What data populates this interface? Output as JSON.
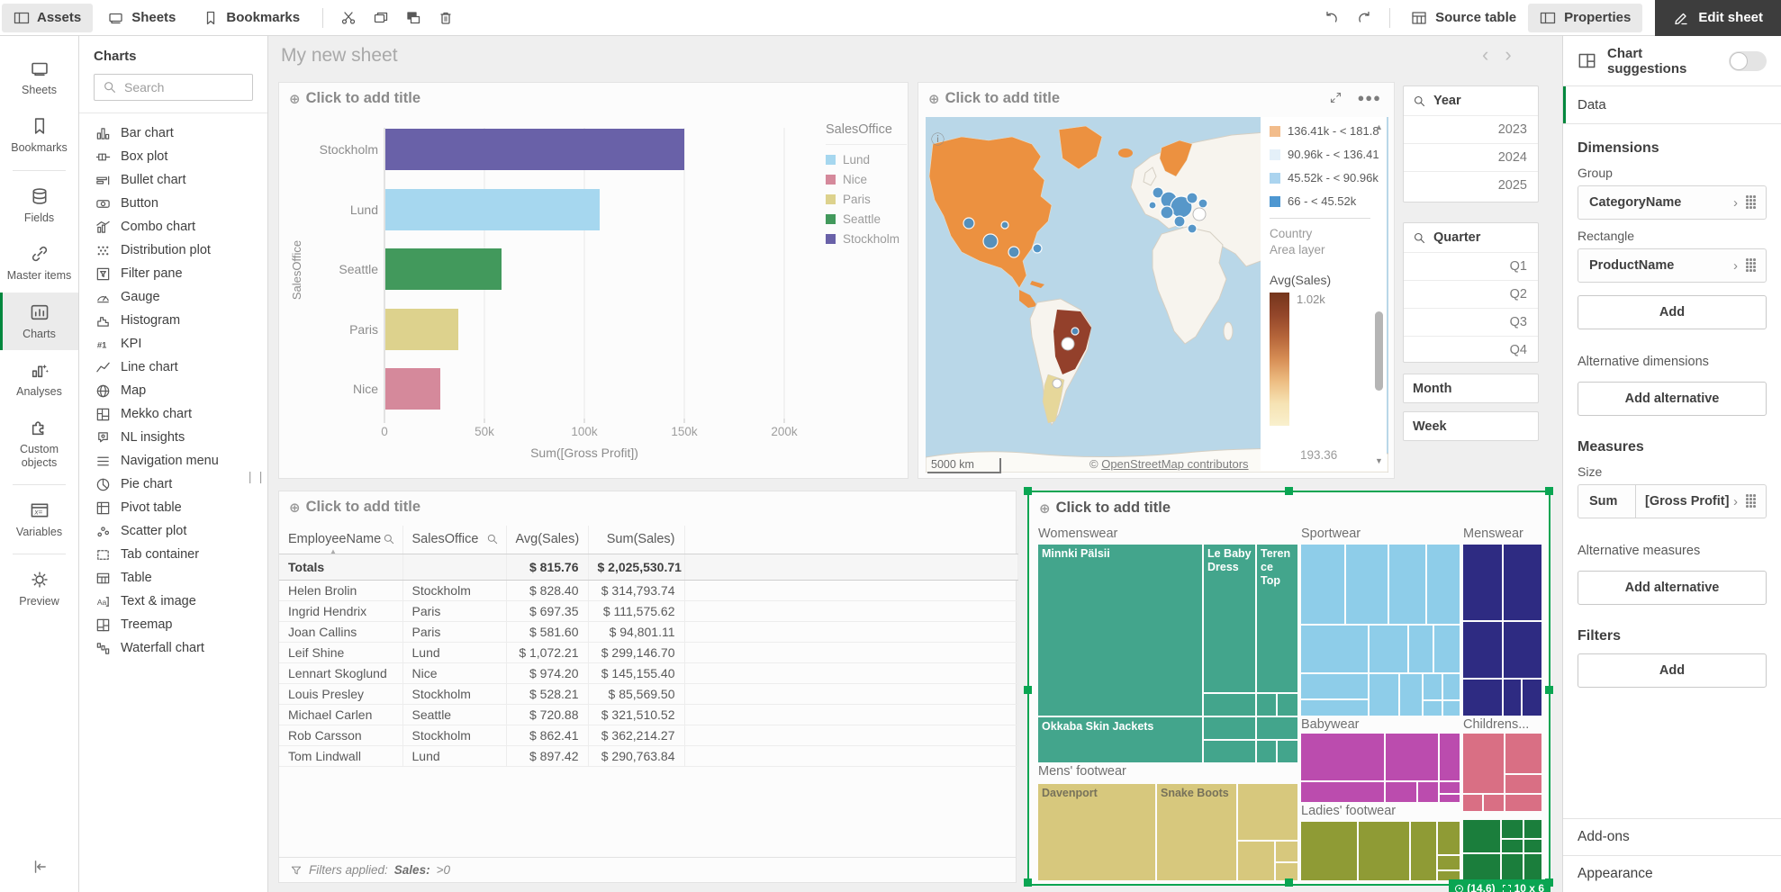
{
  "toolbar": {
    "tabs": [
      {
        "label": "Assets",
        "icon": "panel-left-icon",
        "active": true
      },
      {
        "label": "Sheets",
        "icon": "sheet-icon",
        "active": false
      },
      {
        "label": "Bookmarks",
        "icon": "bookmark-icon",
        "active": false
      }
    ],
    "clipboard": [
      {
        "name": "cut-button",
        "icon": "cut-icon"
      },
      {
        "name": "copy-button",
        "icon": "copy-icon"
      },
      {
        "name": "paste-button",
        "icon": "paste-icon"
      },
      {
        "name": "delete-button",
        "icon": "trash-icon"
      }
    ],
    "source_table_label": "Source table",
    "properties_label": "Properties",
    "edit_sheet_label": "Edit sheet"
  },
  "nav": {
    "items": [
      {
        "label": "Sheets",
        "icon": "sheets-icon",
        "active": false,
        "divider_after": false
      },
      {
        "label": "Bookmarks",
        "icon": "bookmark-icon",
        "active": false,
        "divider_after": true
      },
      {
        "label": "Fields",
        "icon": "database-icon",
        "active": false,
        "divider_after": false
      },
      {
        "label": "Master items",
        "icon": "link-icon",
        "active": false,
        "divider_after": false
      },
      {
        "label": "Charts",
        "icon": "charts-icon",
        "active": true,
        "divider_after": false
      },
      {
        "label": "Analyses",
        "icon": "analyses-icon",
        "active": false,
        "divider_after": false
      },
      {
        "label": "Custom objects",
        "icon": "puzzle-icon",
        "active": false,
        "divider_after": true
      },
      {
        "label": "Variables",
        "icon": "variables-icon",
        "active": false,
        "divider_after": true
      },
      {
        "label": "Preview",
        "icon": "preview-icon",
        "active": false,
        "divider_after": false
      }
    ]
  },
  "assets_panel": {
    "title": "Charts",
    "search_placeholder": "Search",
    "chart_types": [
      "Bar chart",
      "Box plot",
      "Bullet chart",
      "Button",
      "Combo chart",
      "Distribution plot",
      "Filter pane",
      "Gauge",
      "Histogram",
      "KPI",
      "Line chart",
      "Map",
      "Mekko chart",
      "NL insights",
      "Navigation menu",
      "Pie chart",
      "Pivot table",
      "Scatter plot",
      "Tab container",
      "Table",
      "Text & image",
      "Treemap",
      "Waterfall chart"
    ]
  },
  "sheet": {
    "title": "My new sheet"
  },
  "bar_chart": {
    "title_placeholder": "Click to add title",
    "y_axis_label": "SalesOffice",
    "x_axis_label": "Sum([Gross Profit])",
    "x_ticks": [
      "0",
      "50k",
      "100k",
      "150k",
      "200k"
    ],
    "categories": [
      "Stockholm",
      "Lund",
      "Seattle",
      "Paris",
      "Nice"
    ],
    "values": [
      149500,
      107000,
      58000,
      36500,
      27500
    ],
    "colors": [
      "#6961a8",
      "#a6d7ef",
      "#42995c",
      "#ddd28d",
      "#d5899b"
    ],
    "legend_title": "SalesOffice",
    "legend": [
      {
        "label": "Lund",
        "color": "#a6d7ef"
      },
      {
        "label": "Nice",
        "color": "#d5899b"
      },
      {
        "label": "Paris",
        "color": "#ddd28d"
      },
      {
        "label": "Seattle",
        "color": "#42995c"
      },
      {
        "label": "Stockholm",
        "color": "#6961a8"
      }
    ]
  },
  "map_chart": {
    "title_placeholder": "Click to add title",
    "classes": [
      {
        "label": "136.41k - < 181.8",
        "color": "#f2bc8b"
      },
      {
        "label": "90.96k - < 136.41",
        "color": "#e4f0f9"
      },
      {
        "label": "45.52k - < 90.96k",
        "color": "#abd4ef"
      },
      {
        "label": "66 - < 45.52k",
        "color": "#4e97d1"
      }
    ],
    "layer_name": "Country",
    "layer_type": "Area layer",
    "gradient_title": "Avg(Sales)",
    "gradient_max_label": "1.02k",
    "gradient_min_label": "193.36",
    "scale_label": "5000 km",
    "attribution_prefix": "©",
    "attribution_link": "OpenStreetMap contributors"
  },
  "filters": {
    "year": {
      "title": "Year",
      "values": [
        "2023",
        "2024",
        "2025"
      ]
    },
    "quarter": {
      "title": "Quarter",
      "values": [
        "Q1",
        "Q2",
        "Q3",
        "Q4"
      ]
    },
    "month": {
      "title": "Month"
    },
    "week": {
      "title": "Week"
    }
  },
  "table_chart": {
    "title_placeholder": "Click to add title",
    "headers": [
      "EmployeeName",
      "SalesOffice",
      "Avg(Sales)",
      "Sum(Sales)"
    ],
    "totals": {
      "label": "Totals",
      "avg": "$ 815.76",
      "sum": "$ 2,025,530.71"
    },
    "rows": [
      [
        "Helen Brolin",
        "Stockholm",
        "$ 828.40",
        "$ 314,793.74"
      ],
      [
        "Ingrid Hendrix",
        "Paris",
        "$ 697.35",
        "$ 111,575.62"
      ],
      [
        "Joan Callins",
        "Paris",
        "$ 581.60",
        "$ 94,801.11"
      ],
      [
        "Leif Shine",
        "Lund",
        "$ 1,072.21",
        "$ 299,146.70"
      ],
      [
        "Lennart Skoglund",
        "Nice",
        "$ 974.20",
        "$ 145,155.40"
      ],
      [
        "Louis Presley",
        "Stockholm",
        "$ 528.21",
        "$ 85,569.50"
      ],
      [
        "Michael Carlen",
        "Seattle",
        "$ 720.88",
        "$ 321,510.52"
      ],
      [
        "Rob Carsson",
        "Stockholm",
        "$ 862.41",
        "$ 362,214.27"
      ],
      [
        "Tom Lindwall",
        "Lund",
        "$ 897.42",
        "$ 290,763.84"
      ]
    ],
    "footer_prefix": "Filters applied:",
    "footer_filter": "Sales:",
    "footer_value": ">0"
  },
  "treemap_chart": {
    "title_placeholder": "Click to add title",
    "groups": [
      {
        "name": "Womenswear",
        "color": "#43a58c",
        "products": [
          "Minnki Pälsii",
          "Le Baby Dress",
          "Terence Top",
          "Okkaba Skin Jackets"
        ]
      },
      {
        "name": "Sportwear",
        "color": "#8ecde9",
        "products": []
      },
      {
        "name": "Menswear",
        "color": "#2e2b82",
        "products": []
      },
      {
        "name": "Babywear",
        "color": "#bb4cae",
        "products": []
      },
      {
        "name": "Childrens...",
        "color": "#d96f84",
        "products": []
      },
      {
        "name": "Mens' footwear",
        "color": "#d7c87d",
        "products": [
          "Davenport",
          "Snake Boots"
        ]
      },
      {
        "name": "Ladies' footwear",
        "color": "#8f9b35",
        "products": []
      }
    ],
    "extra_group_color": "#1b7e3c",
    "selection_badge": {
      "position": "(14,6)",
      "size": "10 x 6"
    }
  },
  "properties_panel": {
    "chart_suggestions_label": "Chart suggestions",
    "data_section_label": "Data",
    "dimensions": {
      "heading": "Dimensions",
      "group_label": "Group",
      "group_value": "CategoryName",
      "rect_label": "Rectangle",
      "rect_value": "ProductName",
      "add_label": "Add",
      "alt_heading": "Alternative dimensions",
      "alt_add_label": "Add alternative"
    },
    "measures": {
      "heading": "Measures",
      "size_label": "Size",
      "aggregation": "Sum",
      "value": "[Gross Profit]",
      "alt_heading": "Alternative measures",
      "alt_add_label": "Add alternative"
    },
    "filters": {
      "heading": "Filters",
      "add_label": "Add"
    },
    "addons_label": "Add-ons",
    "appearance_label": "Appearance"
  },
  "chart_data": [
    {
      "type": "bar",
      "orientation": "horizontal",
      "title": "",
      "categories": [
        "Stockholm",
        "Lund",
        "Seattle",
        "Paris",
        "Nice"
      ],
      "series": [
        {
          "name": "Sum([Gross Profit])",
          "values": [
            149500,
            107000,
            58000,
            36500,
            27500
          ]
        }
      ],
      "xlabel": "Sum([Gross Profit])",
      "ylabel": "SalesOffice",
      "xlim": [
        0,
        220000
      ],
      "x_ticks": [
        0,
        50000,
        100000,
        150000,
        200000
      ],
      "grid": true,
      "legend_position": "right",
      "legend": [
        "Lund",
        "Nice",
        "Paris",
        "Seattle",
        "Stockholm"
      ]
    },
    {
      "type": "table",
      "title": "",
      "columns": [
        "EmployeeName",
        "SalesOffice",
        "Avg(Sales)",
        "Sum(Sales)"
      ],
      "totals": [
        "Totals",
        "",
        815.76,
        2025530.71
      ],
      "rows": [
        [
          "Helen Brolin",
          "Stockholm",
          828.4,
          314793.74
        ],
        [
          "Ingrid Hendrix",
          "Paris",
          697.35,
          111575.62
        ],
        [
          "Joan Callins",
          "Paris",
          581.6,
          94801.11
        ],
        [
          "Leif Shine",
          "Lund",
          1072.21,
          299146.7
        ],
        [
          "Lennart Skoglund",
          "Nice",
          974.2,
          145155.4
        ],
        [
          "Louis Presley",
          "Stockholm",
          528.21,
          85569.5
        ],
        [
          "Michael Carlen",
          "Seattle",
          720.88,
          321510.52
        ],
        [
          "Rob Carsson",
          "Stockholm",
          862.41,
          362214.27
        ],
        [
          "Tom Lindwall",
          "Lund",
          897.42,
          290763.84
        ]
      ]
    },
    {
      "type": "heatmap",
      "note": "treemap of Gross Profit by CategoryName > ProductName",
      "groups": [
        "Womenswear",
        "Sportwear",
        "Menswear",
        "Babywear",
        "Childrens...",
        "Mens' footwear",
        "Ladies' footwear"
      ],
      "labeled_products": [
        "Minnki Pälsii",
        "Le Baby Dress",
        "Terence Top",
        "Okkaba Skin Jackets",
        "Davenport",
        "Snake Boots"
      ]
    }
  ]
}
